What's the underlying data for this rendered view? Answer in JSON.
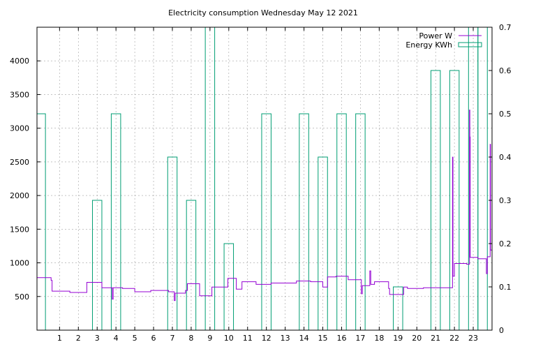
{
  "chart_data": {
    "type": "line",
    "title": "Electricity consumption Wednesday May 12 2021",
    "grid": true,
    "legend_position": "top-right",
    "x_axis": {
      "range": [
        -0.2,
        24
      ],
      "ticks": [
        1,
        2,
        3,
        4,
        5,
        6,
        7,
        8,
        9,
        10,
        11,
        12,
        13,
        14,
        15,
        16,
        17,
        18,
        19,
        20,
        21,
        22,
        23
      ]
    },
    "y_axis_left": {
      "range": [
        0,
        4500
      ],
      "ticks": [
        500,
        1000,
        1500,
        2000,
        2500,
        3000,
        3500,
        4000
      ]
    },
    "y_axis_right": {
      "range": [
        0,
        0.7
      ],
      "ticks": [
        "0",
        "0.1",
        "0.2",
        "0.3",
        "0.4",
        "0.5",
        "0.6",
        "0.7"
      ]
    },
    "series": [
      {
        "name": "Power W",
        "style": "steps",
        "axis": "left",
        "color": "#9400d3",
        "points": [
          [
            -0.2,
            780
          ],
          [
            0.5,
            780
          ],
          [
            0.55,
            740
          ],
          [
            0.6,
            580
          ],
          [
            1.5,
            580
          ],
          [
            1.55,
            560
          ],
          [
            2.4,
            560
          ],
          [
            2.45,
            710
          ],
          [
            3.2,
            710
          ],
          [
            3.25,
            630
          ],
          [
            3.75,
            630
          ],
          [
            3.8,
            460
          ],
          [
            3.85,
            630
          ],
          [
            4.3,
            630
          ],
          [
            4.35,
            620
          ],
          [
            4.95,
            620
          ],
          [
            5.0,
            570
          ],
          [
            5.8,
            570
          ],
          [
            5.85,
            590
          ],
          [
            6.75,
            590
          ],
          [
            6.8,
            570
          ],
          [
            7.05,
            570
          ],
          [
            7.1,
            440
          ],
          [
            7.15,
            550
          ],
          [
            7.6,
            550
          ],
          [
            7.7,
            590
          ],
          [
            7.8,
            690
          ],
          [
            8.4,
            690
          ],
          [
            8.45,
            510
          ],
          [
            9.05,
            510
          ],
          [
            9.1,
            640
          ],
          [
            9.9,
            640
          ],
          [
            9.95,
            770
          ],
          [
            10.35,
            770
          ],
          [
            10.4,
            610
          ],
          [
            10.65,
            610
          ],
          [
            10.7,
            720
          ],
          [
            11.4,
            720
          ],
          [
            11.45,
            680
          ],
          [
            12.2,
            680
          ],
          [
            12.25,
            700
          ],
          [
            13.55,
            700
          ],
          [
            13.6,
            730
          ],
          [
            14.3,
            730
          ],
          [
            14.35,
            720
          ],
          [
            14.95,
            720
          ],
          [
            15.0,
            640
          ],
          [
            15.2,
            640
          ],
          [
            15.25,
            790
          ],
          [
            15.65,
            790
          ],
          [
            15.7,
            800
          ],
          [
            16.3,
            800
          ],
          [
            16.35,
            750
          ],
          [
            17.0,
            750
          ],
          [
            17.05,
            540
          ],
          [
            17.1,
            660
          ],
          [
            17.45,
            660
          ],
          [
            17.5,
            880
          ],
          [
            17.55,
            680
          ],
          [
            17.7,
            680
          ],
          [
            17.75,
            720
          ],
          [
            18.45,
            720
          ],
          [
            18.5,
            620
          ],
          [
            18.55,
            530
          ],
          [
            19.25,
            530
          ],
          [
            19.3,
            640
          ],
          [
            19.45,
            640
          ],
          [
            19.5,
            620
          ],
          [
            20.3,
            620
          ],
          [
            20.35,
            630
          ],
          [
            21.85,
            630
          ],
          [
            21.9,
            2570
          ],
          [
            21.92,
            800
          ],
          [
            22.0,
            990
          ],
          [
            22.6,
            990
          ],
          [
            22.65,
            980
          ],
          [
            22.75,
            980
          ],
          [
            22.8,
            3270
          ],
          [
            22.82,
            2870
          ],
          [
            22.84,
            1080
          ],
          [
            23.2,
            1080
          ],
          [
            23.25,
            1060
          ],
          [
            23.65,
            1060
          ],
          [
            23.7,
            840
          ],
          [
            23.75,
            1090
          ],
          [
            23.85,
            1090
          ],
          [
            23.9,
            2760
          ],
          [
            23.92,
            1190
          ],
          [
            24.0,
            1190
          ]
        ]
      },
      {
        "name": "Energy KWh",
        "style": "bars",
        "axis": "right",
        "color": "#009e73",
        "bars": [
          [
            -0.2,
            0.25,
            0.5
          ],
          [
            2.75,
            3.25,
            0.3
          ],
          [
            3.75,
            4.25,
            0.5
          ],
          [
            6.75,
            7.25,
            0.4
          ],
          [
            7.75,
            8.25,
            0.3
          ],
          [
            8.75,
            9.25,
            0.7
          ],
          [
            9.75,
            10.25,
            0.2
          ],
          [
            11.75,
            12.25,
            0.5
          ],
          [
            13.75,
            14.25,
            0.5
          ],
          [
            14.75,
            15.25,
            0.4
          ],
          [
            15.75,
            16.25,
            0.5
          ],
          [
            16.75,
            17.25,
            0.5
          ],
          [
            18.75,
            19.25,
            0.1
          ],
          [
            20.75,
            21.25,
            0.6
          ],
          [
            21.75,
            22.25,
            0.6
          ],
          [
            22.75,
            23.25,
            0.7
          ],
          [
            23.25,
            23.75,
            0.7
          ]
        ]
      }
    ]
  }
}
